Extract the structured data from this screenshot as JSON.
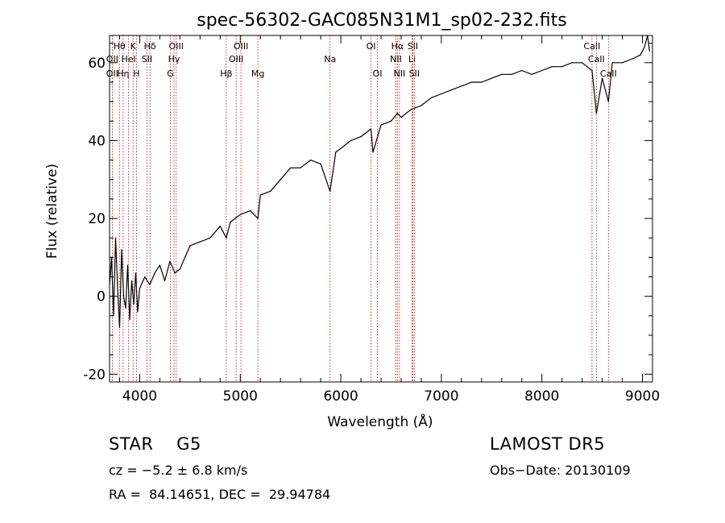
{
  "chart_data": {
    "type": "line",
    "title": "spec-56302-GAC085N31M1_sp02-232.fits",
    "xlabel": "Wavelength (Å)",
    "ylabel": "Flux (relative)",
    "xlim": [
      3700,
      9100
    ],
    "ylim": [
      -22,
      67
    ],
    "x_ticks": [
      4000,
      5000,
      6000,
      7000,
      8000,
      9000
    ],
    "y_ticks": [
      -20,
      0,
      20,
      40,
      60
    ],
    "grid": false,
    "series": [
      {
        "x": [
          3700,
          3720,
          3740,
          3760,
          3780,
          3800,
          3820,
          3840,
          3860,
          3880,
          3900,
          3920,
          3940,
          3960,
          3980,
          4000,
          4050,
          4100,
          4150,
          4200,
          4250,
          4300,
          4350,
          4400,
          4450,
          4500,
          4600,
          4700,
          4800,
          4861,
          4900,
          5000,
          5100,
          5175,
          5200,
          5300,
          5400,
          5500,
          5600,
          5700,
          5800,
          5893,
          5950,
          6000,
          6100,
          6200,
          6300,
          6320,
          6400,
          6500,
          6563,
          6600,
          6700,
          6800,
          6900,
          7000,
          7100,
          7200,
          7300,
          7400,
          7500,
          7600,
          7700,
          7800,
          7900,
          8000,
          8100,
          8200,
          8300,
          8400,
          8498,
          8542,
          8600,
          8662,
          8700,
          8800,
          8900,
          8980,
          9000,
          9020,
          9050,
          9070
        ],
        "y": [
          3,
          10,
          -5,
          15,
          2,
          -8,
          12,
          0,
          -3,
          8,
          -6,
          4,
          -2,
          6,
          -4,
          2,
          5,
          3,
          6,
          8,
          4,
          9,
          6,
          7,
          10,
          13,
          14,
          15,
          18,
          15,
          19,
          21,
          22,
          20,
          26,
          27,
          30,
          33,
          33,
          35,
          34,
          27,
          37,
          38,
          40,
          41,
          43,
          37,
          44,
          45,
          47,
          46,
          48,
          49,
          51,
          52,
          53,
          54,
          55,
          55,
          56,
          57,
          57,
          58,
          57,
          58,
          59,
          59,
          60,
          60,
          58,
          47,
          56,
          50,
          60,
          60,
          61,
          62,
          63,
          64,
          67,
          63
        ]
      }
    ],
    "lines": [
      {
        "label": "Hθ",
        "x": 3798,
        "row": 1
      },
      {
        "label": "OII",
        "x": 3727,
        "row": 2
      },
      {
        "label": "OII",
        "x": 3727,
        "row": 3
      },
      {
        "label": "K",
        "x": 3934,
        "row": 1
      },
      {
        "label": "Hη",
        "x": 3835,
        "row": 3
      },
      {
        "label": "HeI",
        "x": 3889,
        "row": 2
      },
      {
        "label": "H",
        "x": 3968,
        "row": 3
      },
      {
        "label": "Hδ",
        "x": 4102,
        "row": 1
      },
      {
        "label": "SII",
        "x": 4072,
        "row": 2
      },
      {
        "label": "OIII",
        "x": 4363,
        "row": 1
      },
      {
        "label": "Hγ",
        "x": 4341,
        "row": 2
      },
      {
        "label": "G",
        "x": 4305,
        "row": 3
      },
      {
        "label": "OIII",
        "x": 5007,
        "row": 1
      },
      {
        "label": "OIII",
        "x": 4959,
        "row": 2
      },
      {
        "label": "Hβ",
        "x": 4861,
        "row": 3
      },
      {
        "label": "Mg",
        "x": 5175,
        "row": 3
      },
      {
        "label": "Na",
        "x": 5893,
        "row": 2
      },
      {
        "label": "OI",
        "x": 6300,
        "row": 1
      },
      {
        "label": "OI",
        "x": 6364,
        "row": 3
      },
      {
        "label": "Hα",
        "x": 6563,
        "row": 1
      },
      {
        "label": "NII",
        "x": 6548,
        "row": 2
      },
      {
        "label": "NII",
        "x": 6583,
        "row": 3
      },
      {
        "label": "SII",
        "x": 6716,
        "row": 1
      },
      {
        "label": "Li",
        "x": 6708,
        "row": 2
      },
      {
        "label": "SII",
        "x": 6731,
        "row": 3
      },
      {
        "label": "CaII",
        "x": 8498,
        "row": 1
      },
      {
        "label": "CaII",
        "x": 8542,
        "row": 2
      },
      {
        "label": "CaII",
        "x": 8662,
        "row": 3
      }
    ],
    "colors": {
      "spectrum": "#000000",
      "lines": "#cc0000"
    }
  },
  "info": {
    "object_class": "STAR    G5",
    "survey": "LAMOST DR5",
    "cz": "cz = −5.2 ± 6.8 km/s",
    "obs_date": "Obs−Date: 20130109",
    "coords": "RA =  84.14651, DEC =  29.94784"
  }
}
